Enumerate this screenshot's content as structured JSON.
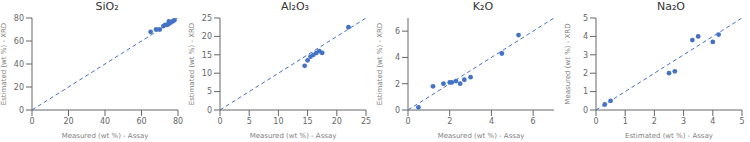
{
  "chart_data": [
    {
      "type": "scatter",
      "title": "SiO₂",
      "xlabel": "Measured (wt %) - Assay",
      "ylabel": "Estimated (wt %) - XRD",
      "xlim": [
        0,
        80
      ],
      "ylim": [
        0,
        80
      ],
      "xticks": [
        0,
        20,
        40,
        60,
        80
      ],
      "yticks": [
        0,
        20,
        40,
        60,
        80
      ],
      "grid": false,
      "series": [
        {
          "type": "line",
          "line_style": "dashed",
          "color": "#4472c4",
          "x": [
            0,
            80
          ],
          "values": [
            0,
            80
          ]
        },
        {
          "type": "scatter",
          "marker": "circle",
          "color": "#4472c4",
          "x": [
            65,
            68,
            70,
            72,
            73,
            74,
            75,
            75,
            76,
            77,
            78
          ],
          "values": [
            68,
            70,
            70,
            73,
            74,
            74,
            75,
            77,
            76,
            77,
            78
          ]
        }
      ]
    },
    {
      "type": "scatter",
      "title": "Al₂O₃",
      "xlabel": "Measured (wt %) - Assay",
      "ylabel": "Estimated (wt %) - XRD",
      "xlim": [
        0,
        25
      ],
      "ylim": [
        0,
        25
      ],
      "xticks": [
        0,
        5,
        10,
        15,
        20,
        25
      ],
      "yticks": [
        0,
        5,
        10,
        15,
        20,
        25
      ],
      "grid": false,
      "series": [
        {
          "type": "line",
          "line_style": "dashed",
          "color": "#4472c4",
          "x": [
            0,
            25
          ],
          "values": [
            0,
            25
          ]
        },
        {
          "type": "scatter",
          "marker": "circle",
          "color": "#4472c4",
          "x": [
            14.5,
            15.0,
            15.5,
            16.0,
            16.5,
            17.0,
            17.5,
            22.0
          ],
          "values": [
            12.0,
            13.5,
            14.5,
            15.0,
            15.5,
            16.0,
            15.5,
            22.5
          ]
        }
      ]
    },
    {
      "type": "scatter",
      "title": "K₂O",
      "xlabel": "Measured (wt %) - Assay",
      "ylabel": "Estimated (wt %) - XRD",
      "xlim": [
        0,
        7
      ],
      "ylim": [
        0,
        7
      ],
      "xticks": [
        0,
        2,
        4,
        6
      ],
      "yticks": [
        0,
        2,
        4,
        6
      ],
      "grid": false,
      "series": [
        {
          "type": "line",
          "line_style": "dashed",
          "color": "#4472c4",
          "x": [
            0,
            7
          ],
          "values": [
            0,
            7
          ]
        },
        {
          "type": "scatter",
          "marker": "circle",
          "color": "#4472c4",
          "x": [
            0.5,
            1.2,
            1.7,
            2.0,
            2.1,
            2.3,
            2.5,
            2.7,
            3.0,
            4.5,
            5.3
          ],
          "values": [
            0.2,
            1.8,
            2.0,
            2.1,
            2.1,
            2.2,
            2.0,
            2.3,
            2.5,
            4.3,
            5.7
          ]
        }
      ]
    },
    {
      "type": "scatter",
      "title": "Na₂O",
      "xlabel": "Estimated (wt %) - Assay",
      "ylabel": "Measured (wt %) - XRD",
      "xlim": [
        0,
        5
      ],
      "ylim": [
        0,
        5
      ],
      "xticks": [
        0,
        1,
        2,
        3,
        4,
        5
      ],
      "yticks": [
        0,
        1,
        2,
        3,
        4,
        5
      ],
      "grid": false,
      "series": [
        {
          "type": "line",
          "line_style": "dashed",
          "color": "#4472c4",
          "x": [
            0,
            5
          ],
          "values": [
            0,
            5
          ]
        },
        {
          "type": "scatter",
          "marker": "circle",
          "color": "#4472c4",
          "x": [
            0.3,
            0.5,
            2.5,
            2.7,
            3.3,
            3.5,
            4.0,
            4.2
          ],
          "values": [
            0.3,
            0.5,
            2.0,
            2.1,
            3.8,
            4.0,
            3.7,
            4.1
          ]
        }
      ]
    }
  ]
}
